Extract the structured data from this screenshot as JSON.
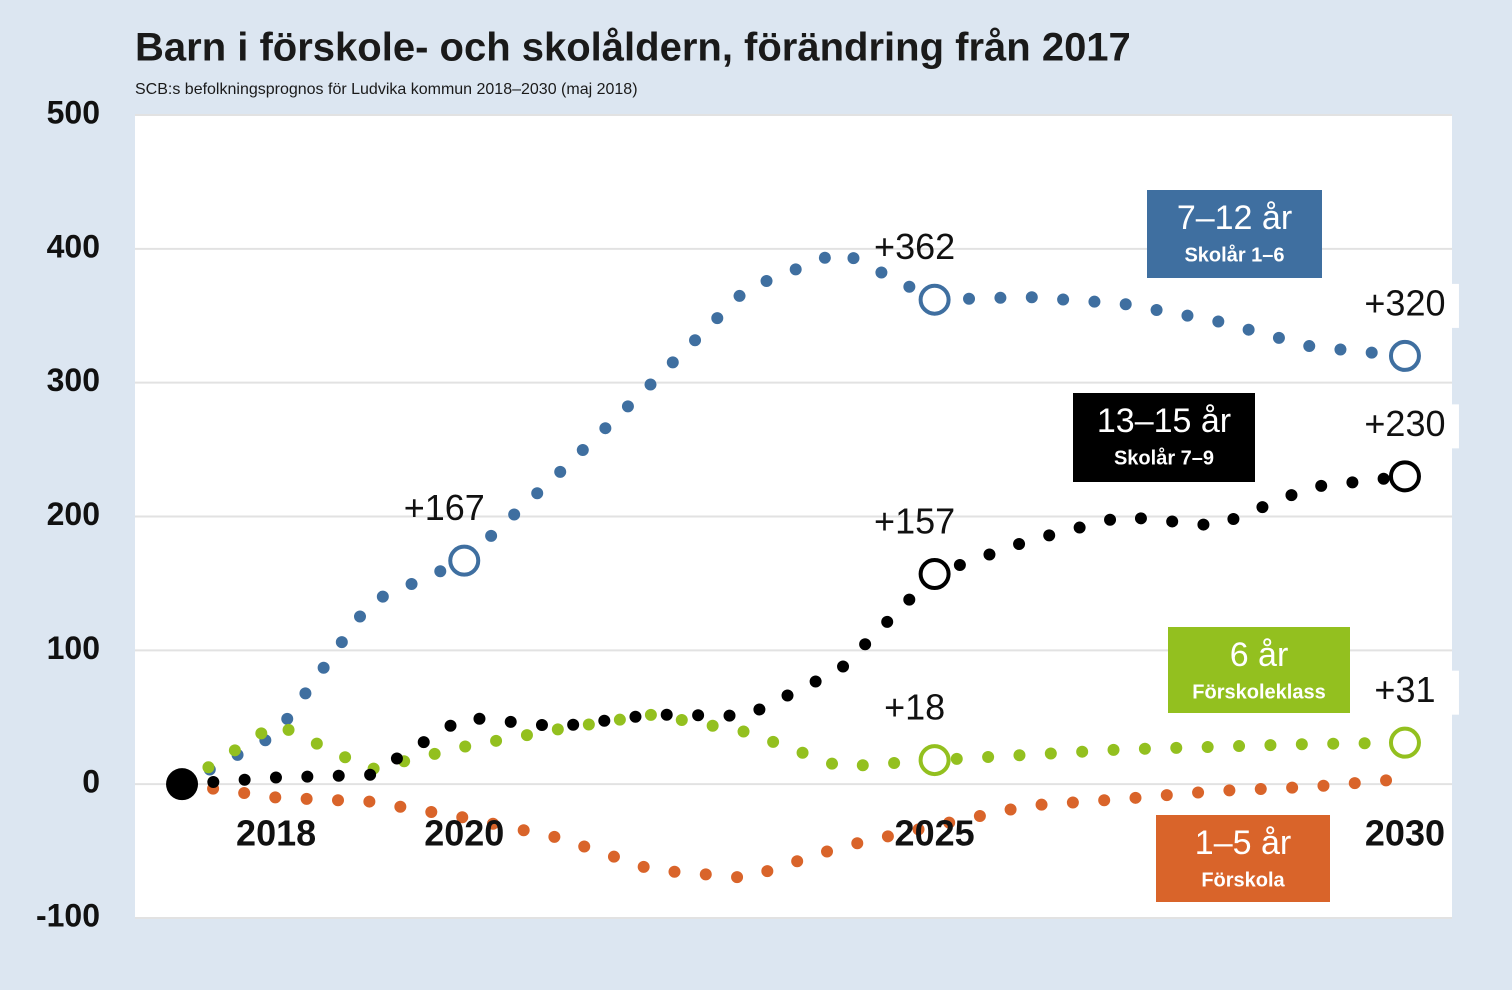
{
  "chart_data": {
    "type": "line",
    "title": "Barn i förskole- och skolåldern, förändring från 2017",
    "subtitle": "SCB:s befolkningsprognos för Ludvika kommun 2018–2030 (maj 2018)",
    "x": [
      2017,
      2018,
      2019,
      2020,
      2021,
      2022,
      2023,
      2024,
      2025,
      2026,
      2027,
      2028,
      2029,
      2030
    ],
    "xlim": [
      2016.5,
      2030.5
    ],
    "xticks": [
      2018,
      2020,
      2025,
      2030
    ],
    "ylim": [
      -100,
      500
    ],
    "yticks": [
      500,
      400,
      300,
      200,
      100,
      0,
      -100
    ],
    "grid": true,
    "series": [
      {
        "name": "7–12 år",
        "sublabel": "Skolår 1–6",
        "color": "#3f6fa0",
        "values": [
          0,
          37,
          136,
          167,
          232,
          300,
          370,
          398,
          362,
          364,
          359,
          346,
          327,
          320
        ],
        "value_labels": [
          null,
          null,
          null,
          "+167",
          null,
          null,
          null,
          null,
          "+362",
          null,
          null,
          null,
          null,
          "+320"
        ]
      },
      {
        "name": "6 år",
        "sublabel": "Förskoleklass",
        "color": "#93c01f",
        "values": [
          0,
          45,
          11,
          28,
          41,
          52,
          39,
          13,
          18,
          22,
          26,
          28,
          30,
          31
        ],
        "value_labels": [
          null,
          null,
          null,
          null,
          null,
          null,
          null,
          null,
          "+18",
          null,
          null,
          null,
          null,
          "+31"
        ]
      },
      {
        "name": "1–5 år",
        "sublabel": "Förskola",
        "color": "#d9642a",
        "values": [
          0,
          -10,
          -13,
          -25,
          -40,
          -64,
          -70,
          -47,
          -31,
          -16,
          -11,
          -5,
          -2,
          4
        ],
        "value_labels": [
          null,
          null,
          null,
          null,
          null,
          null,
          null,
          null,
          null,
          null,
          null,
          null,
          null,
          null
        ]
      },
      {
        "name": "13–15 år",
        "sublabel": "Skolår 7–9",
        "color": "#000000",
        "values": [
          0,
          5,
          7,
          50,
          43,
          52,
          51,
          86,
          157,
          182,
          200,
          193,
          222,
          230
        ],
        "value_labels": [
          null,
          null,
          null,
          null,
          null,
          null,
          null,
          null,
          "+157",
          null,
          null,
          null,
          null,
          "+230"
        ]
      }
    ]
  }
}
